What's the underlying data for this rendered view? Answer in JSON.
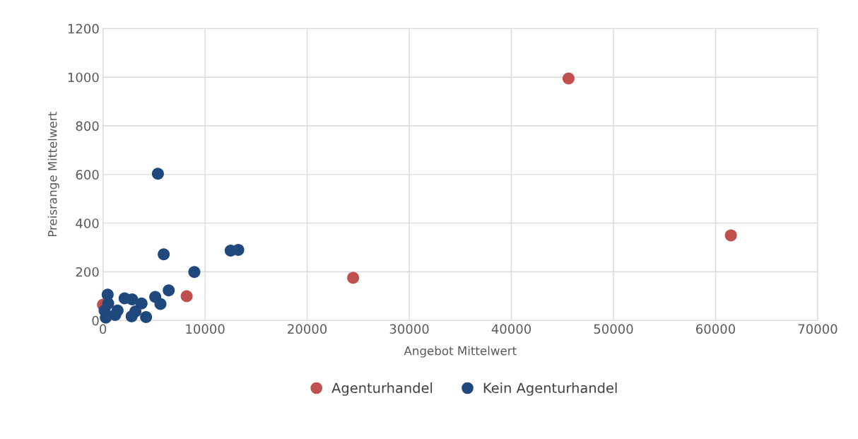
{
  "chart_data": {
    "type": "scatter",
    "xlabel": "Angebot Mittelwert",
    "ylabel": "Preisrange Mittelwert",
    "xlim": [
      0,
      70000
    ],
    "xticks": [
      0,
      10000,
      20000,
      30000,
      40000,
      50000,
      60000,
      70000
    ],
    "ylim": [
      0,
      1200
    ],
    "yticks": [
      0,
      200,
      400,
      600,
      800,
      1000,
      1200
    ],
    "grid": true,
    "legend": "bottom",
    "marker": "circle",
    "series": [
      {
        "name": "Agenturhandel",
        "color": "#c0504d",
        "x": [
          45600,
          61500,
          24500,
          8200,
          0
        ],
        "values": [
          995,
          350,
          175,
          100,
          65
        ]
      },
      {
        "name": "Kein Agenturhandel",
        "color": "#1f497d",
        "x": [
          5380,
          5950,
          8950,
          12510,
          13250,
          6440,
          5120,
          5630,
          3780,
          2860,
          2120,
          3180,
          2810,
          4220,
          460,
          510,
          1430,
          1200,
          280,
          160
        ],
        "values": [
          603,
          272,
          199,
          287,
          290,
          124,
          97,
          68,
          70,
          87,
          91,
          37,
          17,
          14,
          106,
          70,
          41,
          23,
          12,
          41
        ]
      }
    ]
  }
}
